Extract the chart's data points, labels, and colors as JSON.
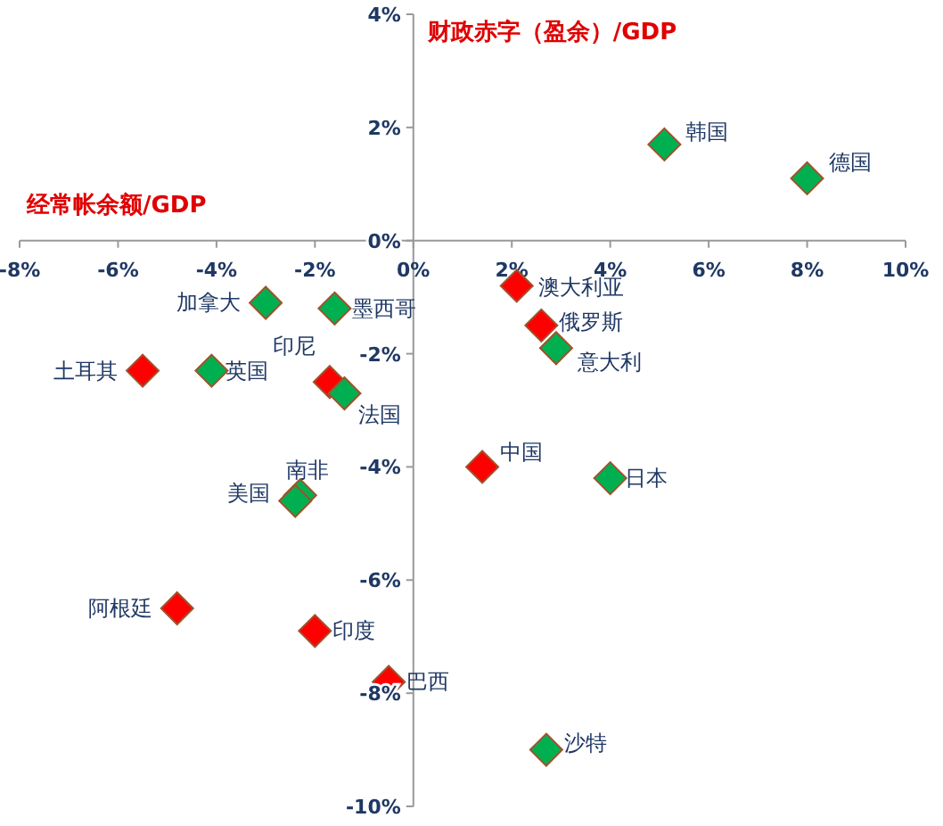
{
  "chart_data": {
    "type": "scatter",
    "xlabel": "经常帐余额/GDP",
    "ylabel": "财政赤字（盈余）/GDP",
    "marker": "diamond",
    "grid": false,
    "xlim": [
      -8,
      10
    ],
    "ylim": [
      -10,
      4
    ],
    "xticks": [
      {
        "value": -8,
        "label": "-8%"
      },
      {
        "value": -6,
        "label": "-6%"
      },
      {
        "value": -4,
        "label": "-4%"
      },
      {
        "value": -2,
        "label": "-2%"
      },
      {
        "value": 0,
        "label": "0%"
      },
      {
        "value": 2,
        "label": "2%"
      },
      {
        "value": 4,
        "label": "4%"
      },
      {
        "value": 6,
        "label": "6%"
      },
      {
        "value": 8,
        "label": "8%"
      },
      {
        "value": 10,
        "label": "10%"
      }
    ],
    "yticks": [
      {
        "value": -10,
        "label": "-10%"
      },
      {
        "value": -8,
        "label": "-8%"
      },
      {
        "value": -6,
        "label": "-6%"
      },
      {
        "value": -4,
        "label": "-4%"
      },
      {
        "value": -2,
        "label": "-2%"
      },
      {
        "value": 0,
        "label": "0%"
      },
      {
        "value": 2,
        "label": "2%"
      },
      {
        "value": 4,
        "label": "4%"
      }
    ],
    "series": [
      {
        "x": [
          5.1,
          8.0,
          2.1,
          -3.0,
          -1.6,
          2.6,
          2.9,
          -5.5,
          -4.1,
          -1.7,
          -1.4,
          1.4,
          4.0,
          -2.3,
          -2.4,
          -4.8,
          -2.0,
          -0.5,
          2.7
        ],
        "values": [
          1.7,
          1.1,
          -0.8,
          -1.1,
          -1.2,
          -1.5,
          -1.9,
          -2.3,
          -2.3,
          -2.5,
          -2.7,
          -4.0,
          -4.2,
          -4.5,
          -4.6,
          -6.5,
          -6.9,
          -7.8,
          -9.0
        ],
        "colors": [
          "#00b050",
          "#00b050",
          "#ff0000",
          "#00b050",
          "#00b050",
          "#ff0000",
          "#00b050",
          "#ff0000",
          "#00b050",
          "#ff0000",
          "#00b050",
          "#ff0000",
          "#00b050",
          "#00b050",
          "#00b050",
          "#ff0000",
          "#ff0000",
          "#ff0000",
          "#00b050"
        ]
      }
    ],
    "annotations": [
      {
        "text": "韩国",
        "x": 5.1,
        "y": 1.7
      },
      {
        "text": "德国",
        "x": 8.0,
        "y": 1.1
      },
      {
        "text": "澳大利亚",
        "x": 2.1,
        "y": -0.8
      },
      {
        "text": "加拿大",
        "x": -3.0,
        "y": -1.1
      },
      {
        "text": "墨西哥",
        "x": -1.6,
        "y": -1.2
      },
      {
        "text": "俄罗斯",
        "x": 2.6,
        "y": -1.5
      },
      {
        "text": "意大利",
        "x": 2.9,
        "y": -1.9
      },
      {
        "text": "土耳其",
        "x": -5.5,
        "y": -2.3
      },
      {
        "text": "英国",
        "x": -4.1,
        "y": -2.3
      },
      {
        "text": "印尼",
        "x": -1.7,
        "y": -2.5
      },
      {
        "text": "法国",
        "x": -1.4,
        "y": -2.7
      },
      {
        "text": "中国",
        "x": 1.4,
        "y": -4.0
      },
      {
        "text": "日本",
        "x": 4.0,
        "y": -4.2
      },
      {
        "text": "南非",
        "x": -2.3,
        "y": -4.5
      },
      {
        "text": "美国",
        "x": -2.4,
        "y": -4.6
      },
      {
        "text": "阿根廷",
        "x": -4.8,
        "y": -6.5
      },
      {
        "text": "印度",
        "x": -2.0,
        "y": -6.9
      },
      {
        "text": "巴西",
        "x": -0.5,
        "y": -7.8
      },
      {
        "text": "沙特",
        "x": 2.7,
        "y": -9.0
      }
    ]
  }
}
